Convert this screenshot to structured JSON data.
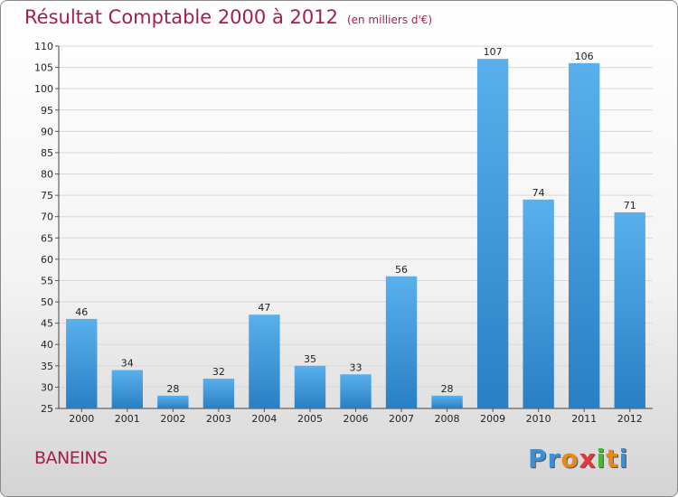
{
  "chart_data": {
    "type": "bar",
    "title": "Résultat Comptable 2000 à 2012",
    "unit": "(en milliers d'€)",
    "xlabel": "",
    "ylabel": "",
    "ylim": [
      25,
      110
    ],
    "yticks": [
      25,
      30,
      35,
      40,
      45,
      50,
      55,
      60,
      65,
      70,
      75,
      80,
      85,
      90,
      95,
      100,
      105,
      110
    ],
    "categories": [
      "2000",
      "2001",
      "2002",
      "2003",
      "2004",
      "2005",
      "2006",
      "2007",
      "2008",
      "2009",
      "2010",
      "2011",
      "2012"
    ],
    "values": [
      46,
      34,
      28,
      32,
      47,
      35,
      33,
      56,
      28,
      107,
      74,
      106,
      71
    ],
    "grid": true,
    "bar_color": "#4a9fe0"
  },
  "commune": "BANEINS",
  "logo": {
    "letters": [
      "P",
      "r",
      "o",
      "x",
      "i",
      "t",
      "i"
    ],
    "colors": [
      "#3a8fd8",
      "#3a8fd8",
      "#e8891c",
      "#e23a3a",
      "#49b83a",
      "#e8891c",
      "#3a8fd8"
    ]
  }
}
